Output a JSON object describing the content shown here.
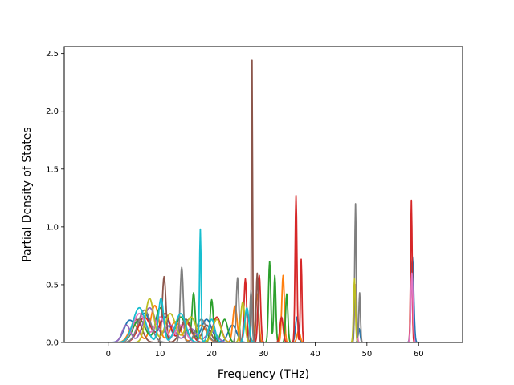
{
  "chart_data": {
    "type": "line",
    "title": "",
    "xlabel": "Frequency (THz)",
    "ylabel": "Partial Density of States",
    "xlim": [
      -8.5,
      68.5
    ],
    "ylim": [
      0,
      2.56
    ],
    "xticks": [
      0,
      10,
      20,
      30,
      40,
      50,
      60
    ],
    "yticks": [
      0.0,
      0.5,
      1.0,
      1.5,
      2.0,
      2.5
    ],
    "xticklabels": [
      "0",
      "10",
      "20",
      "30",
      "40",
      "50",
      "60"
    ],
    "yticklabels": [
      "0.0",
      "0.5",
      "1.0",
      "1.5",
      "2.0",
      "2.5"
    ],
    "x_range": [
      -6,
      65
    ],
    "grid": false,
    "legend": "none",
    "palette": [
      "#1f77b4",
      "#ff7f0e",
      "#2ca02c",
      "#d62728",
      "#9467bd",
      "#8c564b",
      "#e377c2",
      "#7f7f7f",
      "#bcbd22",
      "#17becf"
    ],
    "series": [
      {
        "color": "#1f77b4",
        "peaks": [
          [
            4,
            0.18,
            1.0
          ],
          [
            7,
            0.25,
            1.2
          ],
          [
            11,
            0.22,
            1.0
          ],
          [
            15,
            0.2,
            1.0
          ],
          [
            19,
            0.2,
            1.0
          ],
          [
            24,
            0.15,
            0.8
          ],
          [
            36.5,
            0.22,
            0.3
          ],
          [
            48.5,
            0.12,
            0.2
          ],
          [
            58.8,
            0.74,
            0.25
          ]
        ]
      },
      {
        "color": "#ff7f0e",
        "peaks": [
          [
            5,
            0.15,
            1.0
          ],
          [
            9,
            0.32,
            0.8
          ],
          [
            13,
            0.18,
            1.0
          ],
          [
            18,
            0.15,
            1.0
          ],
          [
            24.5,
            0.32,
            0.4
          ],
          [
            28.8,
            0.42,
            0.3
          ],
          [
            33.8,
            0.58,
            0.25
          ],
          [
            36.8,
            0.1,
            0.3
          ]
        ]
      },
      {
        "color": "#2ca02c",
        "peaks": [
          [
            6,
            0.2,
            1.2
          ],
          [
            10,
            0.3,
            0.8
          ],
          [
            14,
            0.22,
            1.0
          ],
          [
            16.5,
            0.42,
            0.3
          ],
          [
            20,
            0.37,
            0.3
          ],
          [
            22.5,
            0.2,
            0.6
          ],
          [
            31.2,
            0.7,
            0.22
          ],
          [
            32.2,
            0.58,
            0.2
          ],
          [
            34.5,
            0.42,
            0.22
          ]
        ]
      },
      {
        "color": "#d62728",
        "peaks": [
          [
            7,
            0.22,
            1.2
          ],
          [
            11,
            0.25,
            1.0
          ],
          [
            15,
            0.18,
            1.0
          ],
          [
            21,
            0.22,
            0.8
          ],
          [
            26.5,
            0.55,
            0.25
          ],
          [
            29.2,
            0.58,
            0.25
          ],
          [
            33.5,
            0.22,
            0.3
          ],
          [
            36.3,
            1.27,
            0.18
          ],
          [
            37.3,
            0.72,
            0.15
          ],
          [
            58.6,
            1.23,
            0.15
          ]
        ]
      },
      {
        "color": "#9467bd",
        "peaks": [
          [
            3.5,
            0.15,
            0.8
          ],
          [
            8,
            0.3,
            1.2
          ],
          [
            12,
            0.15,
            1.0
          ],
          [
            16,
            0.12,
            1.0
          ],
          [
            20,
            0.1,
            1.0
          ]
        ]
      },
      {
        "color": "#8c564b",
        "peaks": [
          [
            5.5,
            0.2,
            1.0
          ],
          [
            10.8,
            0.57,
            0.35
          ],
          [
            15,
            0.2,
            1.0
          ],
          [
            19,
            0.15,
            0.8
          ],
          [
            27.8,
            2.44,
            0.1
          ],
          [
            28.8,
            0.6,
            0.2
          ]
        ]
      },
      {
        "color": "#e377c2",
        "peaks": [
          [
            6,
            0.25,
            1.2
          ],
          [
            10,
            0.22,
            1.0
          ],
          [
            14,
            0.15,
            1.0
          ],
          [
            47.8,
            0.5,
            0.2
          ],
          [
            58.7,
            0.6,
            0.2
          ]
        ]
      },
      {
        "color": "#7f7f7f",
        "peaks": [
          [
            7,
            0.28,
            1.2
          ],
          [
            14.2,
            0.65,
            0.3
          ],
          [
            18,
            0.2,
            1.0
          ],
          [
            25,
            0.56,
            0.25
          ],
          [
            27.6,
            0.45,
            0.2
          ],
          [
            47.8,
            1.2,
            0.15
          ],
          [
            48.6,
            0.43,
            0.15
          ]
        ]
      },
      {
        "color": "#bcbd22",
        "peaks": [
          [
            8,
            0.38,
            0.8
          ],
          [
            12,
            0.25,
            1.0
          ],
          [
            16,
            0.22,
            1.0
          ],
          [
            21,
            0.2,
            0.8
          ],
          [
            26,
            0.35,
            0.4
          ],
          [
            47.6,
            0.55,
            0.18
          ]
        ]
      },
      {
        "color": "#17becf",
        "peaks": [
          [
            6,
            0.3,
            1.2
          ],
          [
            10.2,
            0.38,
            0.5
          ],
          [
            14,
            0.25,
            1.0
          ],
          [
            17.8,
            0.98,
            0.15
          ],
          [
            20,
            0.2,
            0.6
          ],
          [
            26.8,
            0.3,
            0.4
          ]
        ]
      }
    ]
  }
}
